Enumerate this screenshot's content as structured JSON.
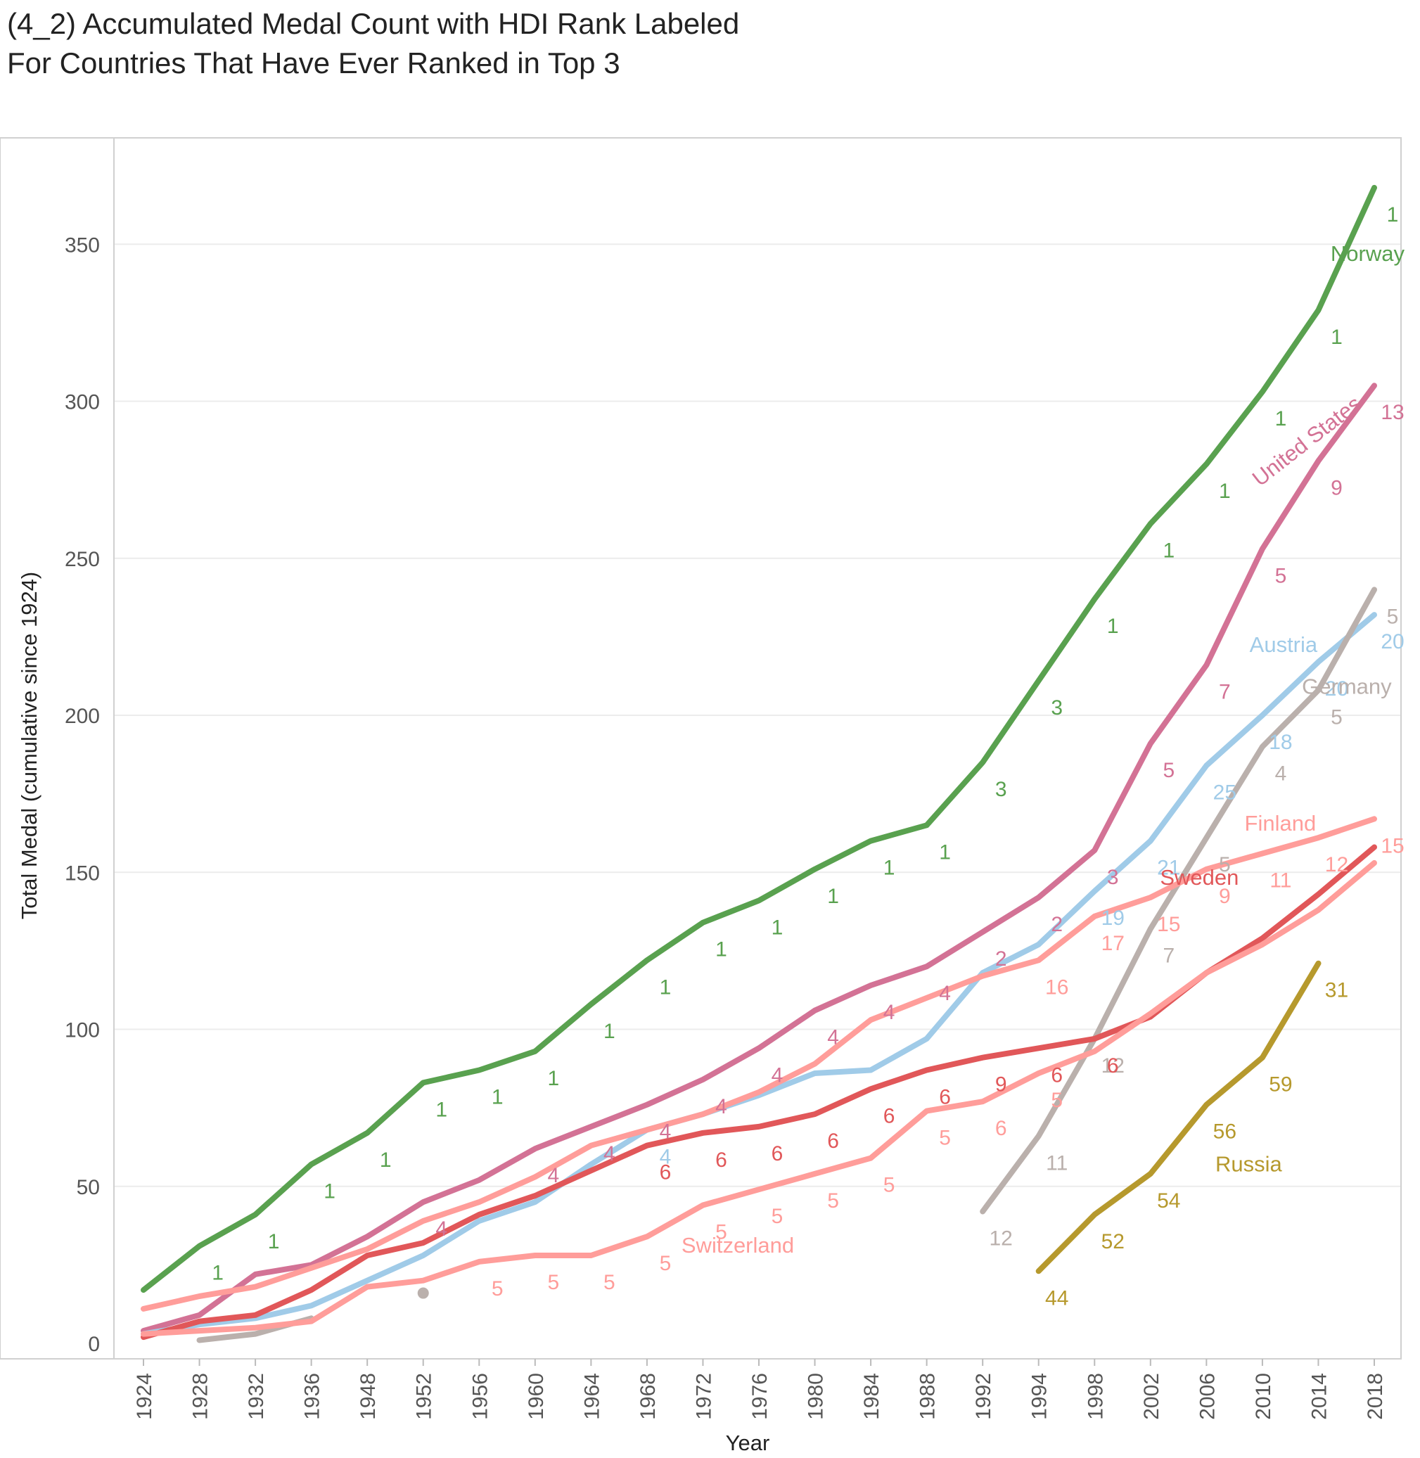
{
  "chart_data": {
    "type": "line",
    "title_lines": [
      "(4_2) Accumulated Medal Count with HDI Rank Labeled",
      "For Countries That Have Ever Ranked in Top 3"
    ],
    "xlabel": "Year",
    "ylabel": "Total Medal (cumulative since 1924)",
    "ylim": [
      0,
      390
    ],
    "y_ticks": [
      0,
      50,
      100,
      150,
      200,
      250,
      300,
      350
    ],
    "categories": [
      "1924",
      "1928",
      "1932",
      "1936",
      "1948",
      "1952",
      "1956",
      "1960",
      "1964",
      "1968",
      "1972",
      "1976",
      "1980",
      "1984",
      "1988",
      "1992",
      "1994",
      "1998",
      "2002",
      "2006",
      "2010",
      "2014",
      "2018"
    ],
    "grid": true,
    "series": [
      {
        "name": "Norway",
        "color": "#59a14f",
        "values": [
          17,
          31,
          41,
          57,
          67,
          83,
          87,
          93,
          108,
          122,
          134,
          141,
          151,
          160,
          165,
          185,
          211,
          237,
          261,
          280,
          303,
          329,
          368
        ],
        "labels": [
          "",
          "1",
          "1",
          "1",
          "1",
          "1",
          "1",
          "1",
          "1",
          "1",
          "1",
          "1",
          "1",
          "1",
          "1",
          "3",
          "3",
          "1",
          "1",
          "1",
          "1",
          "1",
          "1"
        ]
      },
      {
        "name": "United States",
        "color": "#d37295",
        "values": [
          4,
          9,
          22,
          25,
          34,
          45,
          52,
          62,
          69,
          76,
          84,
          94,
          106,
          114,
          120,
          131,
          142,
          157,
          191,
          216,
          253,
          281,
          305
        ],
        "labels": [
          "",
          "",
          "",
          "",
          "",
          "4",
          "",
          "4",
          "4",
          "4",
          "4",
          "4",
          "4",
          "4",
          "4",
          "2",
          "2",
          "3",
          "5",
          "7",
          "5",
          "9",
          "13"
        ]
      },
      {
        "name": "Austria",
        "color": "#a0cbe8",
        "values": [
          3,
          6,
          8,
          12,
          20,
          28,
          39,
          45,
          57,
          68,
          73,
          79,
          86,
          87,
          97,
          118,
          127,
          144,
          160,
          184,
          200,
          217,
          232
        ],
        "labels": [
          "",
          "",
          "",
          "",
          "",
          "",
          "",
          "",
          "",
          "4",
          "",
          "",
          "",
          "",
          "",
          "",
          "",
          "19",
          "21",
          "25",
          "18",
          "20",
          "20"
        ]
      },
      {
        "name": "Germany",
        "color": "#bab0ac",
        "values": [
          null,
          1,
          3,
          8,
          null,
          16,
          null,
          null,
          null,
          null,
          null,
          null,
          null,
          null,
          null,
          42,
          66,
          97,
          132,
          161,
          190,
          208,
          240
        ],
        "labels": [
          "",
          "",
          "",
          "",
          "",
          "",
          "",
          "",
          "",
          "",
          "",
          "",
          "",
          "",
          "",
          "12",
          "11",
          "12",
          "7",
          "5",
          "4",
          "5",
          "5"
        ]
      },
      {
        "name": "Finland",
        "color": "#ff9d9a",
        "values": [
          11,
          15,
          18,
          24,
          30,
          39,
          45,
          53,
          63,
          68,
          73,
          80,
          89,
          103,
          110,
          117,
          122,
          136,
          142,
          151,
          156,
          161,
          167
        ],
        "labels": [
          "",
          "",
          "",
          "",
          "",
          "",
          "",
          "",
          "",
          "",
          "",
          "",
          "",
          "",
          "",
          "",
          "16",
          "17",
          "15",
          "9",
          "11",
          "12",
          "15"
        ]
      },
      {
        "name": "Sweden",
        "color": "#e15759",
        "values": [
          2,
          7,
          9,
          17,
          28,
          32,
          41,
          47,
          55,
          63,
          67,
          69,
          73,
          81,
          87,
          91,
          94,
          97,
          104,
          118,
          129,
          143,
          158
        ],
        "labels": [
          "",
          "",
          "",
          "",
          "",
          "",
          "",
          "",
          "",
          "6",
          "6",
          "6",
          "6",
          "6",
          "6",
          "9",
          "6",
          "6",
          "",
          "",
          "",
          "",
          ""
        ]
      },
      {
        "name": "Switzerland",
        "color": "#ff9d9a",
        "values": [
          3,
          4,
          5,
          7,
          18,
          20,
          26,
          28,
          28,
          34,
          44,
          49,
          54,
          59,
          74,
          77,
          86,
          93,
          105,
          118,
          127,
          138,
          153
        ],
        "labels": [
          "",
          "",
          "",
          "",
          "",
          "",
          "5",
          "5",
          "5",
          "5",
          "5",
          "5",
          "5",
          "5",
          "5",
          "6",
          "5",
          "",
          "",
          "",
          "",
          "",
          ""
        ]
      },
      {
        "name": "Russia",
        "color": "#b6992d",
        "values": [
          null,
          null,
          null,
          null,
          null,
          null,
          null,
          null,
          null,
          null,
          null,
          null,
          null,
          null,
          null,
          null,
          23,
          41,
          54,
          76,
          91,
          121,
          null
        ],
        "labels": [
          "",
          "",
          "",
          "",
          "",
          "",
          "",
          "",
          "",
          "",
          "",
          "",
          "",
          "",
          "",
          "",
          "44",
          "52",
          "54",
          "56",
          "59",
          "31",
          ""
        ]
      }
    ]
  }
}
